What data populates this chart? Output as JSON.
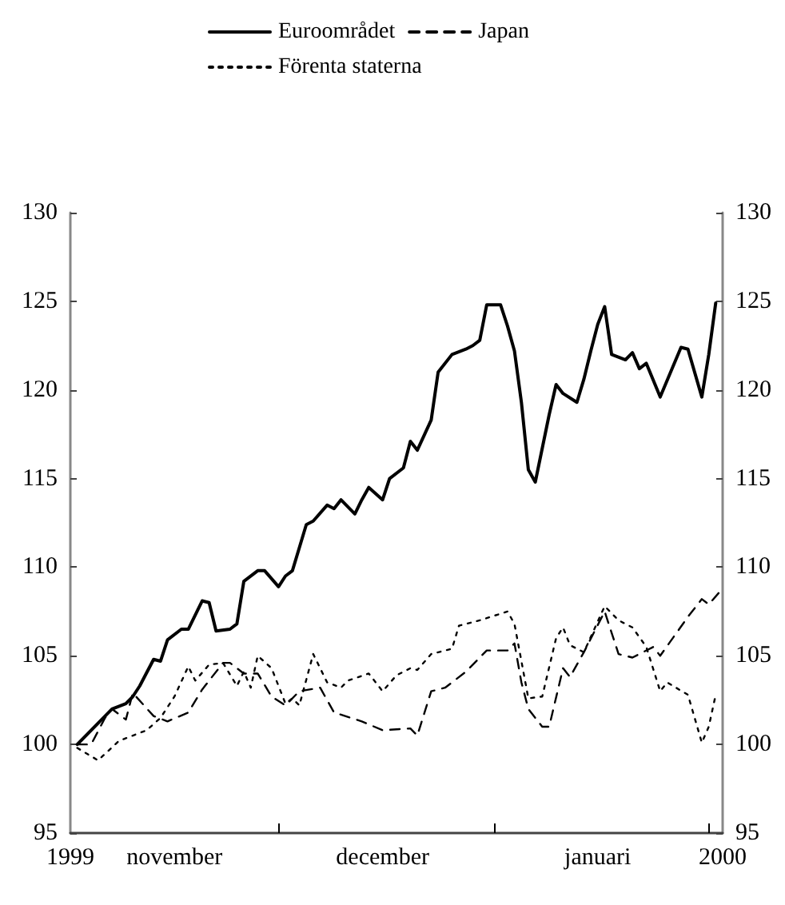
{
  "chart_data": {
    "type": "line",
    "legend": "top",
    "marker": "none",
    "grid": false,
    "xlim": [
      "1999-11-01",
      "2000-02-03"
    ],
    "xticks": [
      {
        "value": "1999-11-01",
        "label": "1999"
      },
      {
        "value": "1999-11-16",
        "label": "november"
      },
      {
        "value": "1999-12-01",
        "label": null
      },
      {
        "value": "1999-12-16",
        "label": "december"
      },
      {
        "value": "2000-01-01",
        "label": null
      },
      {
        "value": "2000-01-16",
        "label": "januari"
      },
      {
        "value": "2000-02-01",
        "label": null
      },
      {
        "value": "2000-02-03",
        "label": "2000"
      }
    ],
    "ylim": [
      95,
      130
    ],
    "yticks": [
      95,
      100,
      105,
      110,
      115,
      120,
      125,
      130
    ],
    "y2lim": [
      95,
      130
    ],
    "y2ticks": [
      95,
      100,
      105,
      110,
      115,
      120,
      125,
      130
    ],
    "series": [
      {
        "name": "Euroområdet",
        "color": "#000000",
        "line_style": "solid",
        "x": [
          "1999-11-02",
          "1999-11-07",
          "1999-11-09",
          "1999-11-10",
          "1999-11-11",
          "1999-11-13",
          "1999-11-14",
          "1999-11-15",
          "1999-11-17",
          "1999-11-18",
          "1999-11-20",
          "1999-11-21",
          "1999-11-22",
          "1999-11-24",
          "1999-11-25",
          "1999-11-26",
          "1999-11-28",
          "1999-11-29",
          "1999-12-01",
          "1999-12-02",
          "1999-12-03",
          "1999-12-05",
          "1999-12-06",
          "1999-12-08",
          "1999-12-09",
          "1999-12-10",
          "1999-12-12",
          "1999-12-13",
          "1999-12-14",
          "1999-12-16",
          "1999-12-17",
          "1999-12-19",
          "1999-12-20",
          "1999-12-21",
          "1999-12-23",
          "1999-12-24",
          "1999-12-26",
          "1999-12-28",
          "1999-12-29",
          "1999-12-30",
          "1999-12-31",
          "2000-01-02",
          "2000-01-03",
          "2000-01-04",
          "2000-01-05",
          "2000-01-06",
          "2000-01-07",
          "2000-01-09",
          "2000-01-10",
          "2000-01-11",
          "2000-01-13",
          "2000-01-14",
          "2000-01-15",
          "2000-01-16",
          "2000-01-17",
          "2000-01-18",
          "2000-01-20",
          "2000-01-21",
          "2000-01-22",
          "2000-01-23",
          "2000-01-25",
          "2000-01-28",
          "2000-01-29",
          "2000-01-31",
          "2000-02-01",
          "2000-02-02"
        ],
        "values": [
          100.0,
          102.0,
          102.3,
          102.7,
          103.3,
          104.8,
          104.7,
          105.9,
          106.5,
          106.5,
          108.1,
          108.0,
          106.4,
          106.5,
          106.8,
          109.2,
          109.8,
          109.8,
          108.9,
          109.5,
          109.8,
          112.4,
          112.6,
          113.5,
          113.3,
          113.8,
          113.0,
          113.8,
          114.5,
          113.8,
          115.0,
          115.6,
          117.1,
          116.6,
          118.3,
          121.0,
          122.0,
          122.3,
          122.5,
          122.8,
          124.8,
          124.8,
          123.6,
          122.2,
          119.3,
          115.5,
          114.8,
          118.6,
          120.3,
          119.8,
          119.3,
          120.6,
          122.2,
          123.7,
          124.7,
          122.0,
          121.7,
          122.1,
          121.2,
          121.5,
          119.6,
          122.4,
          122.3,
          119.6,
          122.0,
          124.9
        ]
      },
      {
        "name": "Japan",
        "color": "#000000",
        "line_style": "dashed",
        "x": [
          "1999-11-02",
          "1999-11-04",
          "1999-11-06",
          "1999-11-07",
          "1999-11-09",
          "1999-11-10",
          "1999-11-13",
          "1999-11-15",
          "1999-11-18",
          "1999-11-20",
          "1999-11-23",
          "1999-11-24",
          "1999-11-26",
          "1999-11-28",
          "1999-11-30",
          "1999-12-02",
          "1999-12-04",
          "1999-12-07",
          "1999-12-09",
          "1999-12-13",
          "1999-12-16",
          "1999-12-20",
          "1999-12-21",
          "1999-12-23",
          "1999-12-25",
          "1999-12-28",
          "1999-12-31",
          "2000-01-03",
          "2000-01-04",
          "2000-01-05",
          "2000-01-06",
          "2000-01-08",
          "2000-01-09",
          "2000-01-11",
          "2000-01-12",
          "2000-01-14",
          "2000-01-17",
          "2000-01-19",
          "2000-01-21",
          "2000-01-24",
          "2000-01-25",
          "2000-01-27",
          "2000-01-29",
          "2000-01-31",
          "2000-02-01",
          "2000-02-03"
        ],
        "values": [
          100.0,
          100.0,
          101.5,
          102.0,
          101.4,
          102.9,
          101.6,
          101.3,
          101.8,
          103.1,
          104.6,
          104.6,
          104.0,
          104.0,
          102.7,
          102.2,
          103.0,
          103.2,
          101.8,
          101.3,
          100.8,
          100.9,
          100.5,
          103.0,
          103.2,
          104.1,
          105.3,
          105.3,
          105.7,
          103.5,
          102.0,
          101.0,
          101.0,
          104.3,
          103.8,
          105.2,
          107.5,
          105.1,
          104.9,
          105.5,
          105.0,
          106.1,
          107.2,
          108.2,
          107.9,
          108.8
        ]
      },
      {
        "name": "Förenta staterna",
        "color": "#000000",
        "line_style": "dotted",
        "x": [
          "1999-11-02",
          "1999-11-05",
          "1999-11-08",
          "1999-11-12",
          "1999-11-14",
          "1999-11-16",
          "1999-11-18",
          "1999-11-19",
          "1999-11-21",
          "1999-11-23",
          "1999-11-25",
          "1999-11-26",
          "1999-11-27",
          "1999-11-28",
          "1999-11-30",
          "1999-12-02",
          "1999-12-03",
          "1999-12-04",
          "1999-12-06",
          "1999-12-08",
          "1999-12-10",
          "1999-12-11",
          "1999-12-14",
          "1999-12-16",
          "1999-12-18",
          "1999-12-20",
          "1999-12-21",
          "1999-12-23",
          "1999-12-26",
          "1999-12-27",
          "1999-12-30",
          "2000-01-03",
          "2000-01-04",
          "2000-01-06",
          "2000-01-08",
          "2000-01-10",
          "2000-01-11",
          "2000-01-12",
          "2000-01-14",
          "2000-01-17",
          "2000-01-19",
          "2000-01-21",
          "2000-01-23",
          "2000-01-25",
          "2000-01-26",
          "2000-01-29",
          "2000-01-31",
          "2000-02-01",
          "2000-02-02"
        ],
        "values": [
          99.8,
          99.1,
          100.2,
          100.8,
          101.5,
          102.7,
          104.4,
          103.6,
          104.5,
          104.6,
          103.3,
          104.1,
          103.2,
          105.0,
          104.3,
          102.3,
          102.6,
          102.2,
          105.1,
          103.5,
          103.2,
          103.6,
          104.0,
          103.0,
          103.9,
          104.3,
          104.2,
          105.1,
          105.4,
          106.7,
          107.0,
          107.5,
          106.8,
          102.6,
          102.7,
          106.0,
          106.6,
          105.6,
          105.2,
          107.8,
          107.0,
          106.6,
          105.5,
          103.0,
          103.5,
          102.8,
          100.1,
          101.0,
          102.8
        ]
      }
    ]
  }
}
